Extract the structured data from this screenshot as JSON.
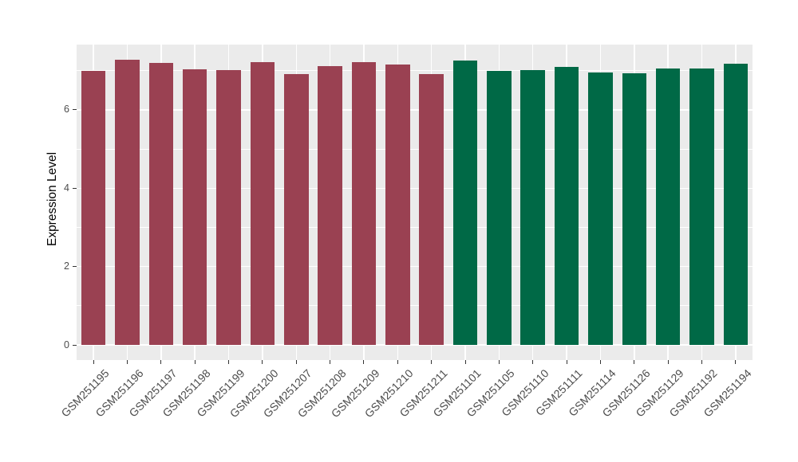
{
  "figure": {
    "background": "#FFFFFF",
    "panel_background": "#EBEBEB",
    "grid_color": "#FFFFFF",
    "tick_color": "#333333",
    "tick_label_color": "#4D4D4D"
  },
  "chart_data": {
    "type": "bar",
    "title": "",
    "xlabel": "",
    "ylabel": "Expression Level",
    "categories": [
      "GSM251195",
      "GSM251196",
      "GSM251197",
      "GSM251198",
      "GSM251199",
      "GSM251200",
      "GSM251207",
      "GSM251208",
      "GSM251209",
      "GSM251210",
      "GSM251211",
      "GSM251101",
      "GSM251105",
      "GSM251110",
      "GSM251111",
      "GSM251114",
      "GSM251126",
      "GSM251129",
      "GSM251192",
      "GSM251194"
    ],
    "values": [
      6.99,
      7.28,
      7.2,
      7.03,
      7.02,
      7.21,
      6.91,
      7.11,
      7.23,
      7.15,
      6.91,
      7.27,
      6.99,
      7.02,
      7.1,
      6.96,
      6.94,
      7.06,
      7.06,
      7.18
    ],
    "bar_group_index": [
      0,
      0,
      0,
      0,
      0,
      0,
      0,
      0,
      0,
      0,
      0,
      1,
      1,
      1,
      1,
      1,
      1,
      1,
      1,
      1
    ],
    "group_colors": [
      "#9A4152",
      "#006946"
    ],
    "y_major_ticks": [
      0,
      2,
      4,
      6
    ],
    "y_tick_labels": [
      "0",
      "2",
      "4",
      "6"
    ],
    "y_minor_gridlines": [
      1,
      3,
      5,
      7
    ],
    "ylim": [
      -0.39,
      7.67
    ],
    "x_tick_label_angle_deg": 45,
    "grid": "on",
    "legend": "none"
  }
}
